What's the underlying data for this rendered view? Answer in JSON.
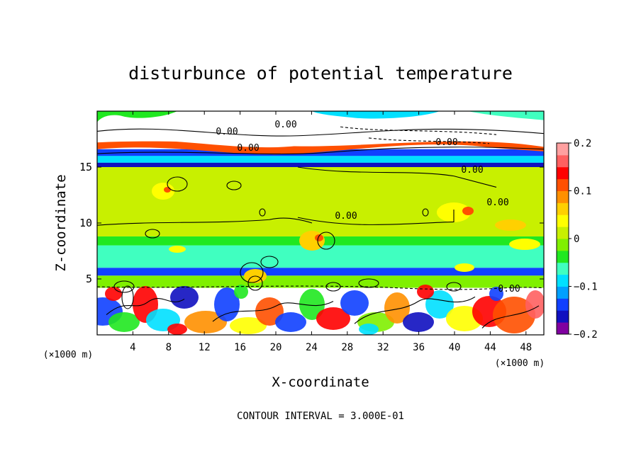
{
  "chart_data": {
    "type": "heatmap",
    "title": "disturbunce of potential temperature",
    "xlabel": "X-coordinate",
    "ylabel": "Z-coordinate",
    "x_unit": "(×1000 m)",
    "x_unit_right": "(×1000 m)",
    "x_ticks": [
      4,
      8,
      12,
      16,
      20,
      24,
      28,
      32,
      36,
      40,
      44,
      48
    ],
    "y_ticks": [
      5,
      10,
      15
    ],
    "xlim": [
      0,
      50
    ],
    "ylim": [
      0,
      20
    ],
    "contour_label": "0.00",
    "footer": "CONTOUR INTERVAL = 3.000E-01",
    "colorbar": {
      "min": -0.2,
      "max": 0.2,
      "ticks": [
        {
          "value": 0.2,
          "label": "0.2"
        },
        {
          "value": 0.1,
          "label": "0.1"
        },
        {
          "value": 0,
          "label": "0"
        },
        {
          "value": -0.1,
          "label": "−0.1"
        },
        {
          "value": -0.2,
          "label": "−0.2"
        }
      ],
      "colors": [
        "#8000a0",
        "#1010c0",
        "#1040ff",
        "#00a0ff",
        "#00e0ff",
        "#40ffc0",
        "#20e820",
        "#80f000",
        "#c8f000",
        "#ffff00",
        "#ffd000",
        "#ff9000",
        "#ff5000",
        "#ff0000",
        "#ff6060",
        "#ffa0a0"
      ]
    },
    "bands": [
      {
        "z": [
          0,
          4.2
        ],
        "value": "mixed"
      },
      {
        "z": [
          4.2,
          5.3
        ],
        "value": -0.02
      },
      {
        "z": [
          5.3,
          6.0
        ],
        "value": -0.15
      },
      {
        "z": [
          6.0,
          8.0
        ],
        "value": -0.06
      },
      {
        "z": [
          8.0,
          8.8
        ],
        "value": -0.04
      },
      {
        "z": [
          8.8,
          15.0
        ],
        "value": 0.02
      },
      {
        "z": [
          15.0,
          15.4
        ],
        "value": -0.17
      },
      {
        "z": [
          15.4,
          16.0
        ],
        "value": -0.08
      },
      {
        "z": [
          16.0,
          20.0
        ],
        "value": "mixed"
      }
    ]
  }
}
